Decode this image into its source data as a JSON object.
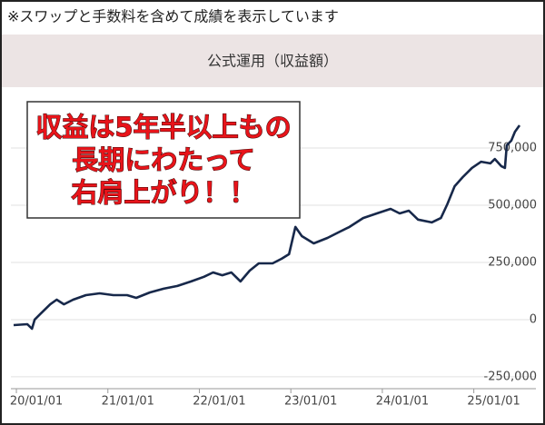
{
  "note": "※スワップと手数料を含めて成績を表示しています",
  "chart_data": {
    "type": "line",
    "title": "公式運用（収益額）",
    "annotation": [
      "収益は5年半以上もの",
      "長期にわたって",
      "右肩上がり！！"
    ],
    "x": [
      2019.97,
      2020.12,
      2020.17,
      2020.2,
      2020.27,
      2020.37,
      2020.44,
      2020.52,
      2020.62,
      2020.76,
      2020.91,
      2021.06,
      2021.21,
      2021.31,
      2021.46,
      2021.61,
      2021.76,
      2021.91,
      2022.05,
      2022.15,
      2022.25,
      2022.35,
      2022.45,
      2022.55,
      2022.65,
      2022.8,
      2022.9,
      2022.98,
      2023.05,
      2023.12,
      2023.25,
      2023.4,
      2023.54,
      2023.64,
      2023.79,
      2023.94,
      2024.09,
      2024.19,
      2024.29,
      2024.39,
      2024.54,
      2024.64,
      2024.71,
      2024.79,
      2024.88,
      2024.98,
      2025.08,
      2025.18,
      2025.23,
      2025.3,
      2025.34,
      2025.36,
      2025.41,
      2025.45,
      2025.5
    ],
    "values": [
      -24000,
      -20000,
      -40000,
      0,
      28000,
      67000,
      87000,
      67000,
      87000,
      107000,
      115000,
      107000,
      107000,
      95000,
      119000,
      135000,
      147000,
      167000,
      187000,
      206000,
      194000,
      206000,
      167000,
      214000,
      246000,
      246000,
      266000,
      286000,
      405000,
      365000,
      333000,
      357000,
      385000,
      405000,
      444000,
      464000,
      484000,
      464000,
      476000,
      437000,
      425000,
      444000,
      504000,
      583000,
      623000,
      663000,
      690000,
      683000,
      702000,
      671000,
      663000,
      762000,
      782000,
      821000,
      849000
    ],
    "color": "#17284a",
    "xlim": [
      2019.94,
      2025.52
    ],
    "xticks": [
      {
        "value": 2020,
        "label": "20/01/01"
      },
      {
        "value": 2021,
        "label": "21/01/01"
      },
      {
        "value": 2022,
        "label": "22/01/01"
      },
      {
        "value": 2023,
        "label": "23/01/01"
      },
      {
        "value": 2024,
        "label": "24/01/01"
      },
      {
        "value": 2025,
        "label": "25/01/01"
      }
    ],
    "ylim": [
      -290000,
      1000000
    ],
    "yticks": [
      {
        "value": -250000,
        "label": "-250,000"
      },
      0,
      {
        "value": 250000,
        "label": "250,000"
      },
      {
        "value": 500000,
        "label": "500,000"
      },
      {
        "value": 750000,
        "label": "750,000"
      }
    ],
    "grid": true
  }
}
